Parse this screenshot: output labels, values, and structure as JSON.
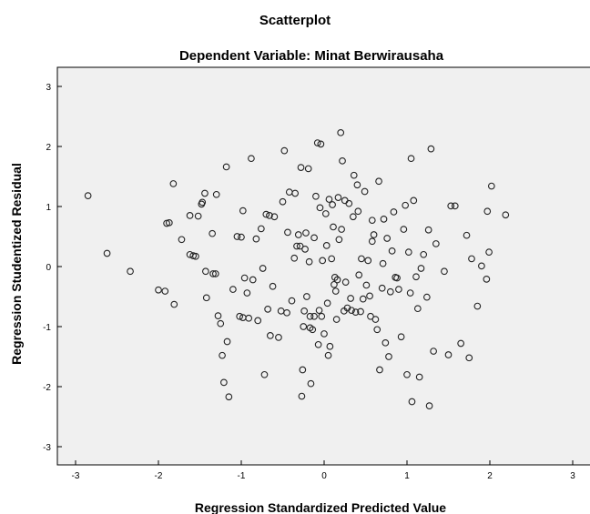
{
  "chart_data": {
    "type": "scatter",
    "title": "Scatterplot",
    "subtitle": "Dependent Variable: Minat Berwirausaha",
    "xlabel": "Regression Standardized Predicted Value",
    "ylabel": "Regression Studentized Residual",
    "xlim": [
      -3.3,
      3.3
    ],
    "ylim": [
      -3.3,
      3.3
    ],
    "xticks": [
      -3,
      -2,
      -1,
      0,
      1,
      2,
      3
    ],
    "yticks": [
      -3,
      -2,
      -1,
      0,
      1,
      2,
      3
    ],
    "grid": false,
    "colors": {
      "plot_background": "#f0f0f0",
      "marker_edge": "#222222"
    },
    "points": [
      [
        -2.85,
        1.18
      ],
      [
        -2.62,
        0.22
      ],
      [
        -2.34,
        -0.08
      ],
      [
        -2.0,
        -0.39
      ],
      [
        -1.92,
        -0.41
      ],
      [
        -1.9,
        0.72
      ],
      [
        -1.87,
        0.73
      ],
      [
        -1.82,
        1.38
      ],
      [
        -1.81,
        -0.63
      ],
      [
        -1.72,
        0.45
      ],
      [
        -1.62,
        0.85
      ],
      [
        -1.62,
        0.2
      ],
      [
        -1.58,
        0.18
      ],
      [
        -1.55,
        0.17
      ],
      [
        -1.52,
        0.84
      ],
      [
        -1.48,
        1.04
      ],
      [
        -1.47,
        1.07
      ],
      [
        -1.44,
        1.22
      ],
      [
        -1.43,
        -0.08
      ],
      [
        -1.42,
        -0.52
      ],
      [
        -1.35,
        0.55
      ],
      [
        -1.34,
        -0.12
      ],
      [
        -1.31,
        -0.12
      ],
      [
        -1.3,
        1.2
      ],
      [
        -1.28,
        -0.82
      ],
      [
        -1.25,
        -0.95
      ],
      [
        -1.23,
        -1.48
      ],
      [
        -1.21,
        -1.93
      ],
      [
        -1.18,
        1.66
      ],
      [
        -1.17,
        -1.25
      ],
      [
        -1.15,
        -2.17
      ],
      [
        -1.1,
        -0.38
      ],
      [
        -1.05,
        0.5
      ],
      [
        -1.02,
        -0.83
      ],
      [
        -1.0,
        0.49
      ],
      [
        -0.98,
        0.93
      ],
      [
        -0.98,
        -0.85
      ],
      [
        -0.96,
        -0.19
      ],
      [
        -0.93,
        -0.44
      ],
      [
        -0.91,
        -0.86
      ],
      [
        -0.88,
        1.8
      ],
      [
        -0.86,
        -0.22
      ],
      [
        -0.82,
        0.46
      ],
      [
        -0.8,
        -0.9
      ],
      [
        -0.76,
        0.63
      ],
      [
        -0.74,
        -0.03
      ],
      [
        -0.72,
        -1.8
      ],
      [
        -0.7,
        0.87
      ],
      [
        -0.68,
        -0.71
      ],
      [
        -0.66,
        0.85
      ],
      [
        -0.65,
        -1.15
      ],
      [
        -0.62,
        -0.33
      ],
      [
        -0.6,
        0.83
      ],
      [
        -0.55,
        -1.18
      ],
      [
        -0.52,
        -0.74
      ],
      [
        -0.5,
        1.08
      ],
      [
        -0.48,
        1.93
      ],
      [
        -0.45,
        -0.77
      ],
      [
        -0.42,
        1.24
      ],
      [
        -0.39,
        -0.57
      ],
      [
        -0.36,
        0.14
      ],
      [
        -0.35,
        1.22
      ],
      [
        -0.33,
        0.34
      ],
      [
        -0.31,
        0.53
      ],
      [
        -0.29,
        0.34
      ],
      [
        -0.28,
        1.65
      ],
      [
        -0.27,
        -2.16
      ],
      [
        -0.26,
        -1.72
      ],
      [
        -0.25,
        -1.0
      ],
      [
        -0.24,
        -0.74
      ],
      [
        -0.23,
        0.29
      ],
      [
        -0.22,
        0.56
      ],
      [
        -0.21,
        -0.5
      ],
      [
        -0.19,
        1.63
      ],
      [
        -0.17,
        -0.83
      ],
      [
        -0.17,
        -1.02
      ],
      [
        -0.16,
        -1.95
      ],
      [
        -0.14,
        -1.05
      ],
      [
        -0.12,
        0.48
      ],
      [
        -0.12,
        -0.83
      ],
      [
        -0.1,
        1.17
      ],
      [
        -0.08,
        2.06
      ],
      [
        -0.07,
        -1.3
      ],
      [
        -0.06,
        -0.73
      ],
      [
        -0.05,
        0.98
      ],
      [
        -0.04,
        2.04
      ],
      [
        -0.03,
        -0.83
      ],
      [
        -0.02,
        0.1
      ],
      [
        0.0,
        -1.12
      ],
      [
        0.02,
        0.88
      ],
      [
        0.04,
        -0.61
      ],
      [
        0.05,
        -1.48
      ],
      [
        0.06,
        1.12
      ],
      [
        0.07,
        -1.33
      ],
      [
        0.09,
        0.13
      ],
      [
        0.1,
        1.03
      ],
      [
        0.11,
        0.66
      ],
      [
        0.12,
        -0.3
      ],
      [
        0.13,
        -0.18
      ],
      [
        0.14,
        -0.41
      ],
      [
        0.15,
        -0.88
      ],
      [
        0.16,
        -0.22
      ],
      [
        0.17,
        1.15
      ],
      [
        0.18,
        0.45
      ],
      [
        0.2,
        2.23
      ],
      [
        0.21,
        0.62
      ],
      [
        0.22,
        1.76
      ],
      [
        0.24,
        -0.74
      ],
      [
        0.25,
        1.1
      ],
      [
        0.26,
        -0.26
      ],
      [
        0.28,
        -0.69
      ],
      [
        0.3,
        1.05
      ],
      [
        0.32,
        -0.53
      ],
      [
        0.33,
        -0.73
      ],
      [
        0.35,
        0.83
      ],
      [
        0.36,
        1.52
      ],
      [
        0.38,
        -0.76
      ],
      [
        0.4,
        1.36
      ],
      [
        0.42,
        -0.14
      ],
      [
        0.44,
        -0.75
      ],
      [
        0.45,
        0.13
      ],
      [
        0.47,
        -0.54
      ],
      [
        0.49,
        1.25
      ],
      [
        0.51,
        -0.31
      ],
      [
        0.53,
        0.1
      ],
      [
        0.55,
        -0.49
      ],
      [
        0.56,
        -0.83
      ],
      [
        0.58,
        0.77
      ],
      [
        0.6,
        0.53
      ],
      [
        0.62,
        -0.88
      ],
      [
        0.64,
        -1.05
      ],
      [
        0.66,
        1.42
      ],
      [
        0.67,
        -1.72
      ],
      [
        0.7,
        -0.36
      ],
      [
        0.72,
        0.79
      ],
      [
        0.74,
        -1.27
      ],
      [
        0.76,
        0.47
      ],
      [
        0.78,
        -1.5
      ],
      [
        0.8,
        -0.42
      ],
      [
        0.82,
        0.26
      ],
      [
        0.84,
        0.91
      ],
      [
        0.86,
        -0.18
      ],
      [
        0.88,
        -0.19
      ],
      [
        0.9,
        -0.38
      ],
      [
        0.93,
        -1.17
      ],
      [
        0.96,
        0.62
      ],
      [
        0.98,
        1.02
      ],
      [
        1.0,
        -1.8
      ],
      [
        1.02,
        0.24
      ],
      [
        1.04,
        -0.44
      ],
      [
        1.05,
        1.8
      ],
      [
        1.06,
        -2.25
      ],
      [
        1.08,
        1.1
      ],
      [
        1.11,
        -0.17
      ],
      [
        1.13,
        -0.7
      ],
      [
        1.15,
        -1.84
      ],
      [
        1.17,
        -0.03
      ],
      [
        1.2,
        0.2
      ],
      [
        1.24,
        -0.51
      ],
      [
        1.26,
        0.61
      ],
      [
        1.27,
        -2.32
      ],
      [
        1.29,
        1.96
      ],
      [
        1.32,
        -1.41
      ],
      [
        1.35,
        0.38
      ],
      [
        1.45,
        -0.08
      ],
      [
        1.5,
        -1.47
      ],
      [
        1.53,
        1.01
      ],
      [
        1.58,
        1.01
      ],
      [
        1.65,
        -1.28
      ],
      [
        1.72,
        0.52
      ],
      [
        1.75,
        -1.52
      ],
      [
        1.78,
        0.13
      ],
      [
        1.85,
        -0.66
      ],
      [
        1.9,
        0.01
      ],
      [
        1.96,
        -0.21
      ],
      [
        1.97,
        0.92
      ],
      [
        1.99,
        0.24
      ],
      [
        2.02,
        1.34
      ],
      [
        2.19,
        0.86
      ],
      [
        0.58,
        0.42
      ],
      [
        0.03,
        0.35
      ],
      [
        -0.18,
        0.08
      ],
      [
        0.41,
        0.92
      ],
      [
        0.71,
        0.05
      ],
      [
        -0.44,
        0.57
      ]
    ]
  }
}
